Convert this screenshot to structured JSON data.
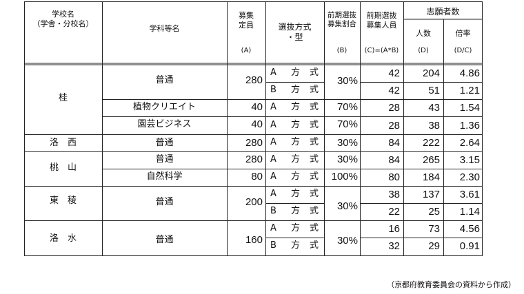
{
  "headers": {
    "school": [
      "学校名",
      "（学舎・分校名）"
    ],
    "dept": "学科等名",
    "capacity": [
      "募集",
      "定員"
    ],
    "capacity_sym": "(A)",
    "method": [
      "選抜方式",
      "・型"
    ],
    "ratio": [
      "前期選抜",
      "募集割合"
    ],
    "ratio_sym": "(B)",
    "people": [
      "前期選抜",
      "募集人員"
    ],
    "people_sym": "(C)=(A*B)",
    "applicants_group": "志願者数",
    "applicants": "人数",
    "applicants_sym": "(D)",
    "rate": "倍率",
    "rate_sym": "(D/C)"
  },
  "schools": [
    {
      "name": "桂"
    },
    {
      "name": "洛　西"
    },
    {
      "name": "桃　山"
    },
    {
      "name": "東　稜"
    },
    {
      "name": "洛　水"
    }
  ],
  "depts": [
    "普通",
    "植物クリエイト",
    "園芸ビジネス",
    "普通",
    "普通",
    "自然科学",
    "普通",
    "普通"
  ],
  "capacities": [
    "280",
    "40",
    "40",
    "280",
    "280",
    "80",
    "200",
    "160"
  ],
  "ratios": [
    "30%",
    "70%",
    "70%",
    "30%",
    "30%",
    "100%",
    "30%",
    "30%"
  ],
  "rows": [
    {
      "method": [
        "A",
        "方",
        "式"
      ],
      "people": "42",
      "applicants": "204",
      "rate": "4.86"
    },
    {
      "method": [
        "B",
        "方",
        "式"
      ],
      "people": "42",
      "applicants": "51",
      "rate": "1.21"
    },
    {
      "method": [
        "A",
        "方",
        "式"
      ],
      "people": "28",
      "applicants": "43",
      "rate": "1.54"
    },
    {
      "method": [
        "A",
        "方",
        "式"
      ],
      "people": "28",
      "applicants": "38",
      "rate": "1.36"
    },
    {
      "method": [
        "A",
        "方",
        "式"
      ],
      "people": "84",
      "applicants": "222",
      "rate": "2.64"
    },
    {
      "method": [
        "A",
        "方",
        "式"
      ],
      "people": "84",
      "applicants": "265",
      "rate": "3.15"
    },
    {
      "method": [
        "A",
        "方",
        "式"
      ],
      "people": "80",
      "applicants": "184",
      "rate": "2.30"
    },
    {
      "method": [
        "A",
        "方",
        "式"
      ],
      "people": "38",
      "applicants": "137",
      "rate": "3.61"
    },
    {
      "method": [
        "B",
        "方",
        "式"
      ],
      "people": "22",
      "applicants": "25",
      "rate": "1.14"
    },
    {
      "method": [
        "A",
        "方",
        "式"
      ],
      "people": "16",
      "applicants": "73",
      "rate": "4.56"
    },
    {
      "method": [
        "B",
        "方",
        "式"
      ],
      "people": "32",
      "applicants": "29",
      "rate": "0.91"
    }
  ],
  "source": "（京都府教育委員会の資料から作成）"
}
